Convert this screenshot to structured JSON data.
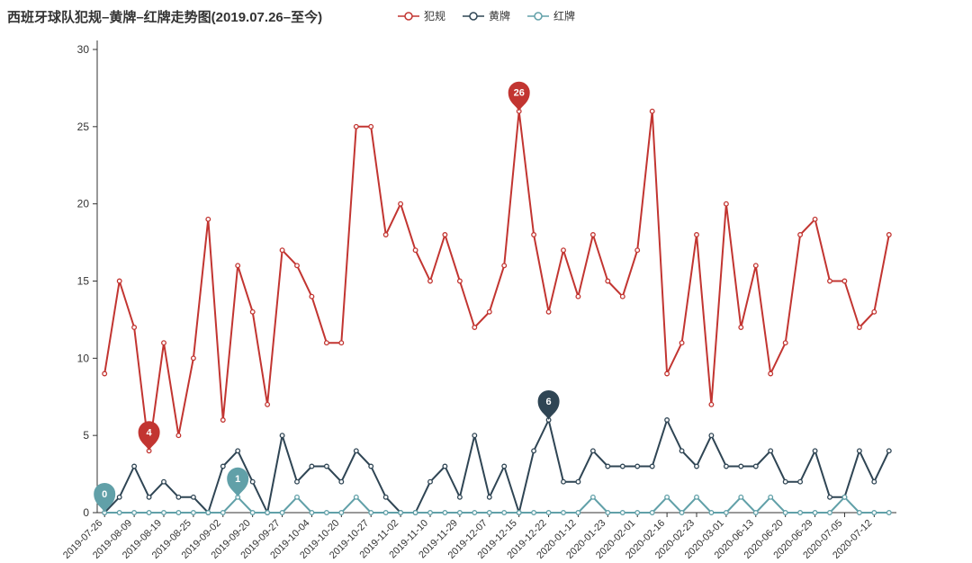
{
  "title": "西班牙球队犯规–黄牌–红牌走势图(2019.07.26–至今)",
  "legend": [
    {
      "label": "犯规",
      "color": "#c23531"
    },
    {
      "label": "黄牌",
      "color": "#2f4554"
    },
    {
      "label": "红牌",
      "color": "#61a0a8"
    }
  ],
  "colors": {
    "fouls": "#c23531",
    "yellow_cards": "#2f4554",
    "red_cards": "#61a0a8",
    "axis": "#333333",
    "background": "#ffffff"
  },
  "chart_data": {
    "type": "line",
    "title": "西班牙球队犯规–黄牌–红牌走势图(2019.07.26–至今)",
    "xlabel": "",
    "ylabel": "",
    "ylim": [
      0,
      30
    ],
    "y_ticks": [
      0,
      5,
      10,
      15,
      20,
      25,
      30
    ],
    "grid": false,
    "legend_position": "top-center",
    "x_labels": [
      "2019-07-26",
      "2019-08-09",
      "2019-08-19",
      "2019-08-25",
      "2019-09-02",
      "2019-09-20",
      "2019-09-27",
      "2019-10-04",
      "2019-10-20",
      "2019-10-27",
      "2019-11-02",
      "2019-11-10",
      "2019-11-29",
      "2019-12-07",
      "2019-12-15",
      "2019-12-22",
      "2020-01-12",
      "2020-01-23",
      "2020-02-01",
      "2020-02-16",
      "2020-02-23",
      "2020-03-01",
      "2020-06-13",
      "2020-06-20",
      "2020-06-29",
      "2020-07-05",
      "2020-07-12"
    ],
    "label_every": 2,
    "series": [
      {
        "name": "犯规",
        "color": "#c23531",
        "values": [
          9,
          15,
          12,
          4,
          11,
          5,
          10,
          19,
          6,
          16,
          13,
          7,
          17,
          16,
          14,
          11,
          11,
          25,
          25,
          18,
          20,
          17,
          15,
          18,
          15,
          12,
          13,
          16,
          26,
          18,
          13,
          17,
          14,
          18,
          15,
          14,
          17,
          26,
          9,
          11,
          18,
          7,
          20,
          12,
          16,
          9,
          11,
          18,
          19,
          15,
          15,
          12,
          13,
          18
        ]
      },
      {
        "name": "黄牌",
        "color": "#2f4554",
        "values": [
          0,
          1,
          3,
          1,
          2,
          1,
          1,
          0,
          3,
          4,
          2,
          0,
          5,
          2,
          3,
          3,
          2,
          4,
          3,
          1,
          0,
          0,
          2,
          3,
          1,
          5,
          1,
          3,
          0,
          4,
          6,
          2,
          2,
          4,
          3,
          3,
          3,
          3,
          6,
          4,
          3,
          5,
          3,
          3,
          3,
          4,
          2,
          2,
          4,
          1,
          1,
          4,
          2,
          4
        ]
      },
      {
        "name": "红牌",
        "color": "#61a0a8",
        "values": [
          0,
          0,
          0,
          0,
          0,
          0,
          0,
          0,
          0,
          1,
          0,
          0,
          0,
          1,
          0,
          0,
          0,
          1,
          0,
          0,
          0,
          0,
          0,
          0,
          0,
          0,
          0,
          0,
          0,
          0,
          0,
          0,
          0,
          1,
          0,
          0,
          0,
          0,
          1,
          0,
          1,
          0,
          0,
          1,
          0,
          1,
          0,
          0,
          0,
          0,
          1,
          0,
          0,
          0
        ]
      }
    ],
    "mark_points": [
      {
        "series": 0,
        "index": 3,
        "label": "4"
      },
      {
        "series": 0,
        "index": 28,
        "label": "26"
      },
      {
        "series": 1,
        "index": 30,
        "label": "6"
      },
      {
        "series": 2,
        "index": 0,
        "label": "0"
      },
      {
        "series": 2,
        "index": 9,
        "label": "1"
      }
    ]
  }
}
